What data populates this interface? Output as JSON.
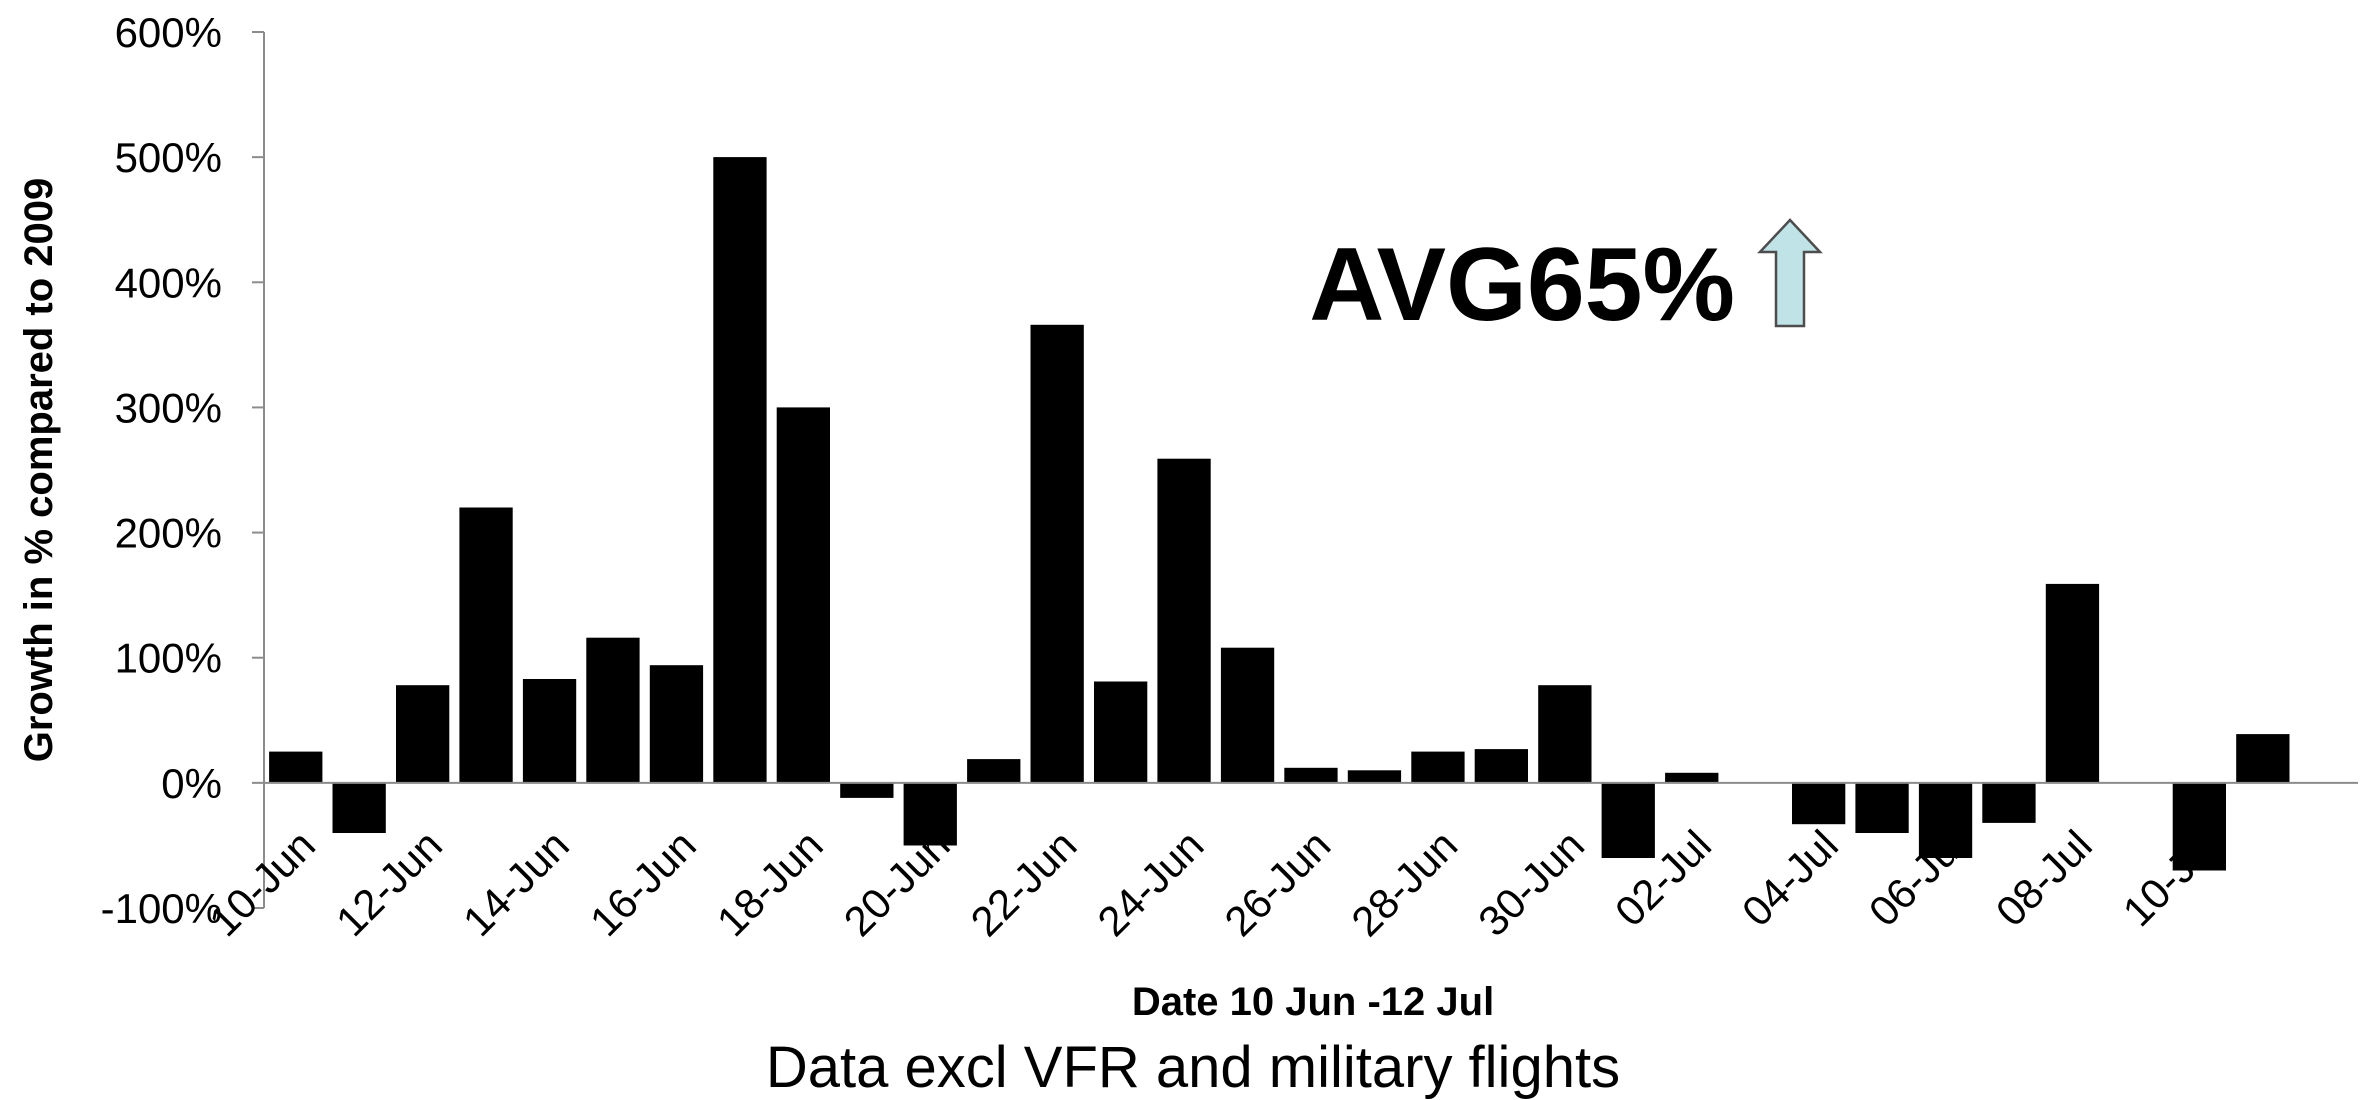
{
  "chart_data": {
    "type": "bar",
    "title": "",
    "xlabel": "Date 10 Jun -12 Jul",
    "ylabel": "Growth in % compared to 2009",
    "ylim": [
      -100,
      600
    ],
    "yticks": [
      "600%",
      "500%",
      "400%",
      "300%",
      "200%",
      "100%",
      "0%",
      "-100%"
    ],
    "ytick_values": [
      600,
      500,
      400,
      300,
      200,
      100,
      0,
      -100
    ],
    "xtick_labels": [
      "10-Jun",
      "12-Jun",
      "14-Jun",
      "16-Jun",
      "18-Jun",
      "20-Jun",
      "22-Jun",
      "24-Jun",
      "26-Jun",
      "28-Jun",
      "30-Jun",
      "02-Jul",
      "04-Jul",
      "06-Jul",
      "08-Jul",
      "10-Jul"
    ],
    "categories": [
      "10-Jun",
      "11-Jun",
      "12-Jun",
      "13-Jun",
      "14-Jun",
      "15-Jun",
      "16-Jun",
      "17-Jun",
      "18-Jun",
      "19-Jun",
      "20-Jun",
      "21-Jun",
      "22-Jun",
      "23-Jun",
      "24-Jun",
      "25-Jun",
      "26-Jun",
      "27-Jun",
      "28-Jun",
      "29-Jun",
      "30-Jun",
      "01-Jul",
      "02-Jul",
      "03-Jul",
      "04-Jul",
      "05-Jul",
      "06-Jul",
      "07-Jul",
      "08-Jul",
      "09-Jul",
      "10-Jul",
      "11-Jul",
      "12-Jul"
    ],
    "values": [
      25,
      -40,
      78,
      220,
      83,
      116,
      94,
      500,
      300,
      -12,
      -50,
      19,
      366,
      81,
      259,
      108,
      12,
      10,
      25,
      27,
      78,
      -60,
      8,
      0,
      -33,
      -40,
      -60,
      -32,
      159,
      0,
      -70,
      39,
      0
    ],
    "grid": false,
    "bar_color": "#000000"
  },
  "annotation": {
    "text": "AVG65%",
    "arrow_icon": "up-arrow-icon",
    "arrow_fill": "#bfe3e6",
    "arrow_stroke": "#4d4d4d"
  },
  "footnote": "Data excl VFR and military flights"
}
